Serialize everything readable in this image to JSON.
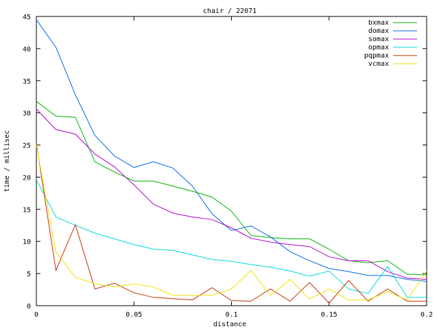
{
  "chart_data": {
    "type": "line",
    "title": "chair / 22071",
    "xlabel": "distance",
    "ylabel": "time / millisec",
    "xlim": [
      0,
      0.2
    ],
    "ylim": [
      0,
      45
    ],
    "xticks": [
      0,
      0.05,
      0.1,
      0.15,
      0.2
    ],
    "xtick_labels": [
      "0",
      "0.05",
      "0.1",
      "0.15",
      "0.2"
    ],
    "yticks": [
      0,
      5,
      10,
      15,
      20,
      25,
      30,
      35,
      40,
      45
    ],
    "ytick_labels": [
      "0",
      "5",
      "10",
      "15",
      "20",
      "25",
      "30",
      "35",
      "40",
      "45"
    ],
    "grid": false,
    "legend_position": "top-right",
    "x": [
      0,
      0.01,
      0.02,
      0.03,
      0.04,
      0.05,
      0.06,
      0.07,
      0.08,
      0.09,
      0.1,
      0.11,
      0.12,
      0.13,
      0.14,
      0.15,
      0.16,
      0.17,
      0.18,
      0.19,
      0.2
    ],
    "series": [
      {
        "name": "bxmax",
        "color": "#00b000",
        "values": [
          31.8,
          29.5,
          29.3,
          22.4,
          20.8,
          19.4,
          19.4,
          18.6,
          17.8,
          16.9,
          14.7,
          10.9,
          10.6,
          10.4,
          10.4,
          8.8,
          7.0,
          6.7,
          7.0,
          4.9,
          4.8
        ]
      },
      {
        "name": "domax",
        "color": "#0066ee",
        "values": [
          44.5,
          40.2,
          32.8,
          26.5,
          23.3,
          21.5,
          22.4,
          21.4,
          18.6,
          14.3,
          11.7,
          12.4,
          10.7,
          8.4,
          7.0,
          5.8,
          5.3,
          4.7,
          4.7,
          4.1,
          3.8
        ]
      },
      {
        "name": "somax",
        "color": "#b000d0",
        "values": [
          30.6,
          27.4,
          26.7,
          23.6,
          21.6,
          18.8,
          15.8,
          14.4,
          13.8,
          13.4,
          12.1,
          10.5,
          9.9,
          9.5,
          9.2,
          7.6,
          7.0,
          7.0,
          5.3,
          4.3,
          4.1
        ]
      },
      {
        "name": "opmax",
        "color": "#00d8d8",
        "values": [
          19.6,
          13.8,
          12.5,
          11.3,
          10.4,
          9.5,
          8.8,
          8.6,
          7.9,
          7.2,
          6.9,
          6.4,
          6.0,
          5.4,
          4.6,
          5.4,
          2.6,
          1.9,
          6.1,
          1.3,
          1.3
        ]
      },
      {
        "name": "pqpmax",
        "color": "#c03000",
        "values": [
          25.3,
          5.5,
          12.6,
          2.6,
          3.5,
          2.0,
          1.3,
          1.1,
          0.9,
          2.8,
          0.8,
          0.7,
          2.6,
          0.7,
          3.6,
          0.4,
          3.9,
          0.7,
          2.6,
          0.7,
          0.7
        ]
      },
      {
        "name": "vcmax",
        "color": "#f0e000",
        "values": [
          25.0,
          8.3,
          4.4,
          3.4,
          2.9,
          3.4,
          2.9,
          1.6,
          1.6,
          1.6,
          2.6,
          5.5,
          1.6,
          4.1,
          1.0,
          2.6,
          0.9,
          0.9,
          2.2,
          0.9,
          5.4
        ]
      }
    ]
  }
}
